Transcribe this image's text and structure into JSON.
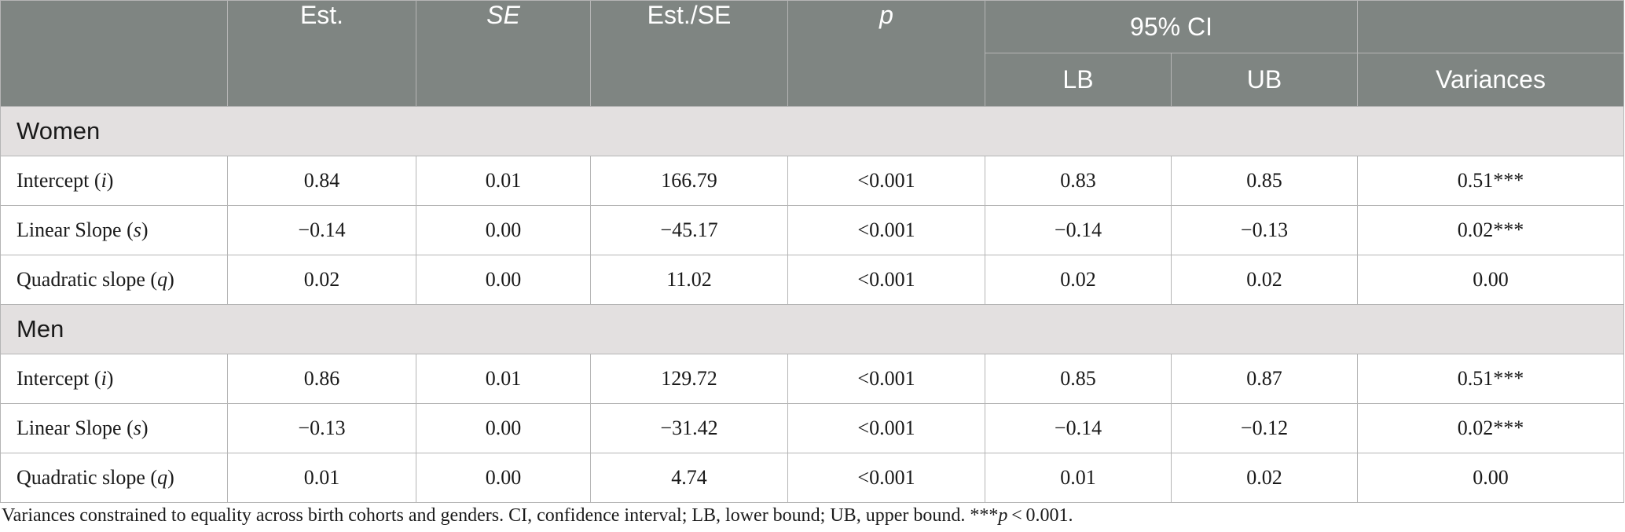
{
  "header": {
    "empty": "",
    "est": "Est.",
    "se": "SE",
    "est_se": "Est./SE",
    "p": "p",
    "ci": "95% CI",
    "lb": "LB",
    "ub": "UB",
    "variances": "Variances"
  },
  "groups": [
    {
      "name": "Women",
      "rows": [
        {
          "term": "Intercept",
          "sym": "i",
          "est": "0.84",
          "se": "0.01",
          "est_se": "166.79",
          "p": "<0.001",
          "lb": "0.83",
          "ub": "0.85",
          "var": "0.51***"
        },
        {
          "term": "Linear Slope",
          "sym": "s",
          "est": "−0.14",
          "se": "0.00",
          "est_se": "−45.17",
          "p": "<0.001",
          "lb": "−0.14",
          "ub": "−0.13",
          "var": "0.02***"
        },
        {
          "term": "Quadratic slope",
          "sym": "q",
          "est": "0.02",
          "se": "0.00",
          "est_se": "11.02",
          "p": "<0.001",
          "lb": "0.02",
          "ub": "0.02",
          "var": "0.00"
        }
      ]
    },
    {
      "name": "Men",
      "rows": [
        {
          "term": "Intercept",
          "sym": "i",
          "est": "0.86",
          "se": "0.01",
          "est_se": "129.72",
          "p": "<0.001",
          "lb": "0.85",
          "ub": "0.87",
          "var": "0.51***"
        },
        {
          "term": "Linear Slope",
          "sym": "s",
          "est": "−0.13",
          "se": "0.00",
          "est_se": "−31.42",
          "p": "<0.001",
          "lb": "−0.14",
          "ub": "−0.12",
          "var": "0.02***"
        },
        {
          "term": "Quadratic slope",
          "sym": "q",
          "est": "0.01",
          "se": "0.00",
          "est_se": "4.74",
          "p": "<0.001",
          "lb": "0.01",
          "ub": "0.02",
          "var": "0.00"
        }
      ]
    }
  ],
  "footnote": {
    "text": "Variances constrained to equality across birth cohorts and genders. CI, confidence interval; LB, lower bound; UB, upper bound. ***",
    "p_symbol": "p",
    "threshold": " < 0.001."
  },
  "colors": {
    "header_bg": "#7f8582",
    "group_bg": "#e3e0e0",
    "border": "#b5b5b5"
  }
}
